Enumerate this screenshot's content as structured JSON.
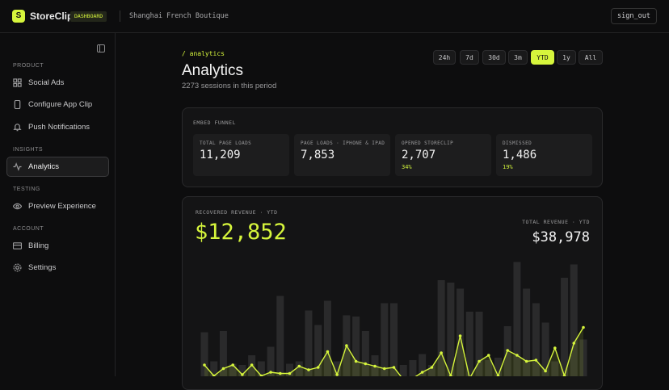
{
  "topbar": {
    "brand": "StoreClip",
    "badge": "DASHBOARD",
    "store": "Shanghai French Boutique",
    "sign_out": "sign_out"
  },
  "sidebar": {
    "sections": [
      {
        "title": "PRODUCT",
        "items": [
          "Social Ads",
          "Configure App Clip",
          "Push Notifications"
        ]
      },
      {
        "title": "INSIGHTS",
        "items": [
          "Analytics"
        ]
      },
      {
        "title": "TESTING",
        "items": [
          "Preview Experience"
        ]
      },
      {
        "title": "ACCOUNT",
        "items": [
          "Billing",
          "Settings"
        ]
      }
    ]
  },
  "header": {
    "breadcrumb": "/ analytics",
    "title": "Analytics",
    "subtitle": "2273 sessions in this period"
  },
  "range_buttons": [
    "24h",
    "7d",
    "30d",
    "3m",
    "YTD",
    "1y",
    "All"
  ],
  "funnel": {
    "title": "EMBED FUNNEL",
    "tiles": [
      {
        "label": "TOTAL PAGE LOADS",
        "value": "11,209"
      },
      {
        "label": "PAGE LOADS · IPHONE & IPAD",
        "value": "7,853"
      },
      {
        "label": "OPENED STORECLIP",
        "value": "2,707",
        "rate": "34%"
      },
      {
        "label": "DISMISSED",
        "value": "1,486",
        "rate": "19%"
      }
    ]
  },
  "revenue": {
    "recovered_label": "RECOVERED REVENUE · YTD",
    "recovered_value": "$12,852",
    "total_label": "TOTAL REVENUE · YTD",
    "total_value": "$38,978"
  },
  "revenue_chart": {
    "type": "bar",
    "ylim": [
      0,
      100
    ],
    "bar_color": "#2a2a2b",
    "line_color": "#d6f53c",
    "bars": [
      39,
      15,
      40,
      13,
      12,
      20,
      15,
      27,
      69,
      13,
      15,
      57,
      45,
      65,
      15,
      53,
      52,
      40,
      20,
      63,
      63,
      12,
      16,
      21,
      12,
      82,
      80,
      75,
      56,
      56,
      16,
      18,
      44,
      97,
      75,
      63,
      47,
      15,
      84,
      95,
      33
    ],
    "line": [
      12,
      3,
      9,
      12,
      4,
      12,
      3,
      6,
      5,
      5,
      11,
      8,
      10,
      23,
      4,
      28,
      15,
      13,
      11,
      9,
      10,
      0,
      1,
      6,
      10,
      22,
      3,
      36,
      1,
      15,
      20,
      3,
      24,
      20,
      15,
      16,
      7,
      26,
      3,
      30,
      43
    ]
  }
}
